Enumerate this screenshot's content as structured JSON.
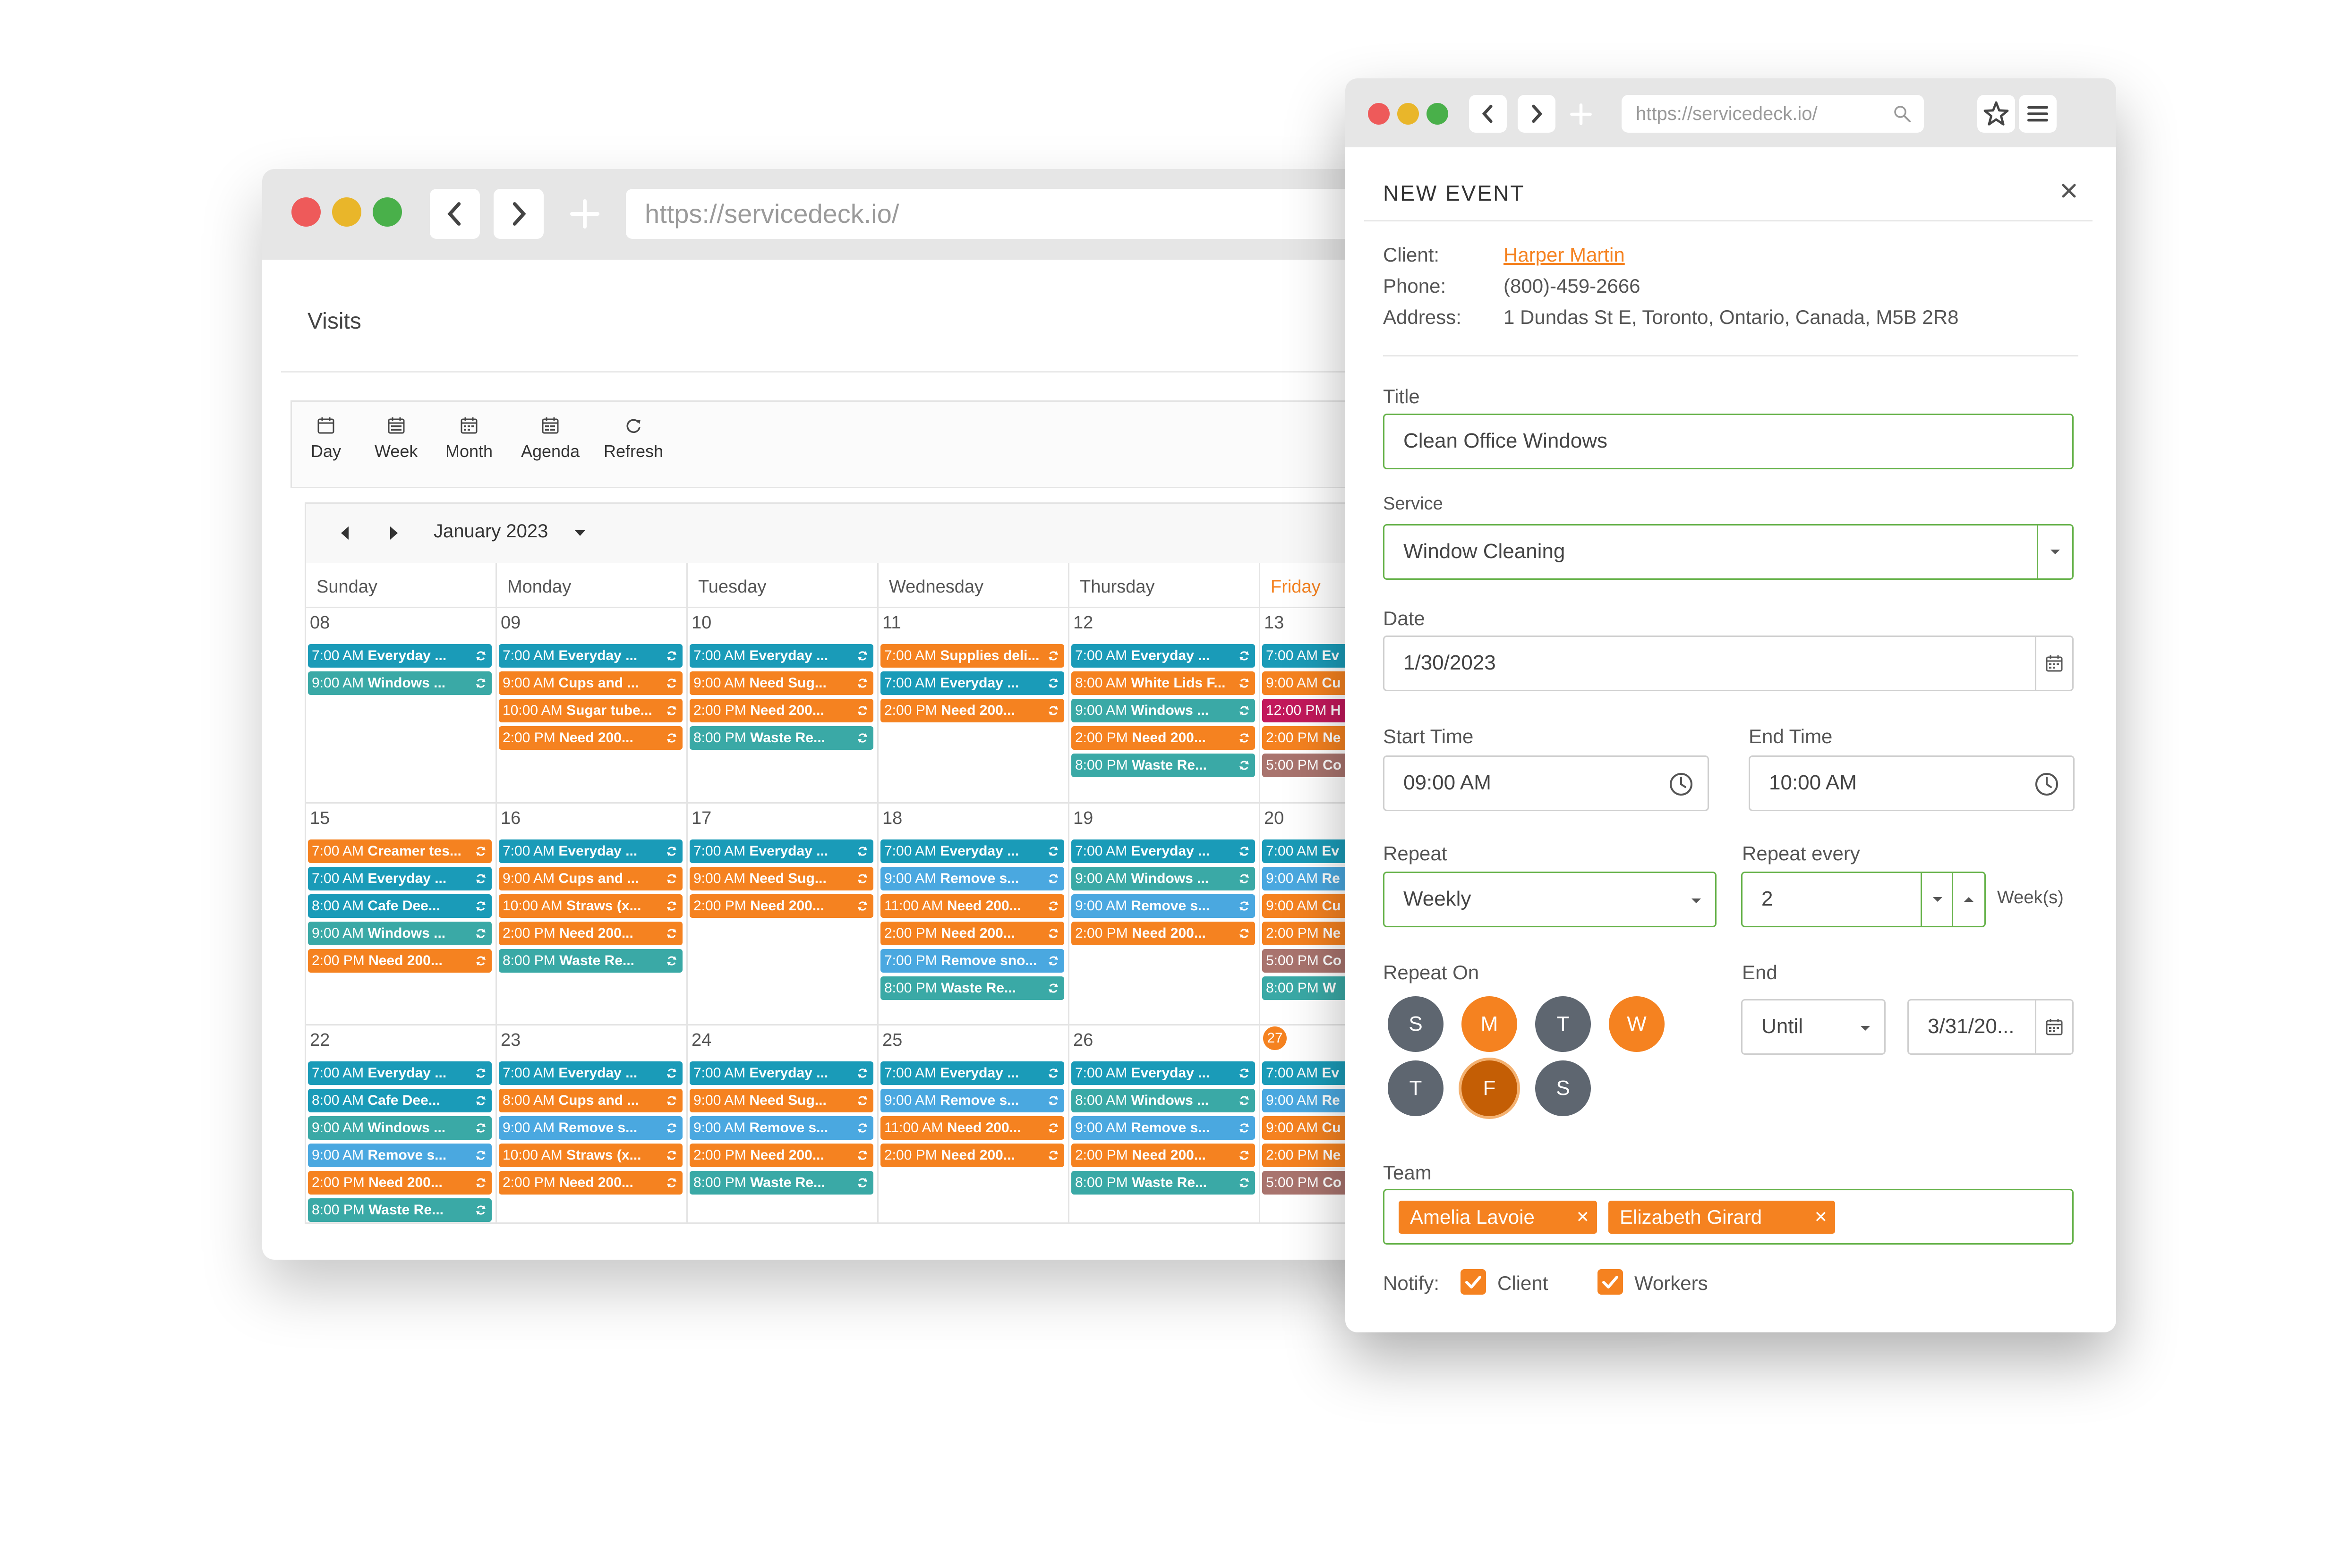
{
  "back_window": {
    "url": "https://servicedeck.io/",
    "page_title": "Visits",
    "toolbar": [
      {
        "icon": "calendar-day-icon",
        "label": "Day"
      },
      {
        "icon": "calendar-week-icon",
        "label": "Week"
      },
      {
        "icon": "calendar-month-icon",
        "label": "Month"
      },
      {
        "icon": "calendar-agenda-icon",
        "label": "Agenda"
      },
      {
        "icon": "refresh-icon",
        "label": "Refresh"
      }
    ],
    "month_label": "January 2023",
    "days": [
      "Sunday",
      "Monday",
      "Tuesday",
      "Wednesday",
      "Thursday",
      "Friday"
    ],
    "highlight_day": "Friday",
    "weeks": [
      {
        "dates": [
          "08",
          "09",
          "10",
          "11",
          "12",
          "13"
        ]
      },
      {
        "dates": [
          "15",
          "16",
          "17",
          "18",
          "19",
          "20"
        ]
      },
      {
        "dates": [
          "22",
          "23",
          "24",
          "25",
          "26",
          "27"
        ]
      }
    ],
    "today_date": "27",
    "events": [
      [
        [
          [
            "7:00 AM",
            "Everyday ...",
            "#1a9bb8"
          ],
          [
            "9:00 AM",
            "Windows ...",
            "#3aa9a6"
          ]
        ],
        [
          [
            "7:00 AM",
            "Everyday ...",
            "#1a9bb8"
          ],
          [
            "9:00 AM",
            "Cups and ...",
            "#f58220"
          ],
          [
            "10:00 AM",
            "Sugar tube...",
            "#f58220"
          ],
          [
            "2:00 PM",
            "Need 200...",
            "#f58220"
          ]
        ],
        [
          [
            "7:00 AM",
            "Everyday ...",
            "#1a9bb8"
          ],
          [
            "9:00 AM",
            "Need Sug...",
            "#f58220"
          ],
          [
            "2:00 PM",
            "Need 200...",
            "#f58220"
          ],
          [
            "8:00 PM",
            "Waste Re...",
            "#3aa9a6"
          ]
        ],
        [
          [
            "7:00 AM",
            "Supplies deli...",
            "#f58220"
          ],
          [
            "7:00 AM",
            "Everyday ...",
            "#1a9bb8"
          ],
          [
            "2:00 PM",
            "Need 200...",
            "#f58220"
          ]
        ],
        [
          [
            "7:00 AM",
            "Everyday ...",
            "#1a9bb8"
          ],
          [
            "8:00 AM",
            "White Lids F...",
            "#f58220"
          ],
          [
            "9:00 AM",
            "Windows ...",
            "#3aa9a6"
          ],
          [
            "2:00 PM",
            "Need 200...",
            "#f58220"
          ],
          [
            "8:00 PM",
            "Waste Re...",
            "#3aa9a6"
          ]
        ],
        [
          [
            "7:00 AM",
            "Ev",
            "#1a9bb8"
          ],
          [
            "9:00 AM",
            "Cu",
            "#f58220"
          ],
          [
            "12:00 PM",
            "H",
            "#c2185b"
          ],
          [
            "2:00 PM",
            "Ne",
            "#f58220"
          ],
          [
            "5:00 PM",
            "Co",
            "#a9746e"
          ]
        ]
      ],
      [
        [
          [
            "7:00 AM",
            "Creamer tes...",
            "#f58220"
          ],
          [
            "7:00 AM",
            "Everyday ...",
            "#1a9bb8"
          ],
          [
            "8:00 AM",
            "Cafe Dee...",
            "#1a9bb8"
          ],
          [
            "9:00 AM",
            "Windows ...",
            "#3aa9a6"
          ],
          [
            "2:00 PM",
            "Need 200...",
            "#f58220"
          ]
        ],
        [
          [
            "7:00 AM",
            "Everyday ...",
            "#1a9bb8"
          ],
          [
            "9:00 AM",
            "Cups and ...",
            "#f58220"
          ],
          [
            "10:00 AM",
            "Straws (x...",
            "#f58220"
          ],
          [
            "2:00 PM",
            "Need 200...",
            "#f58220"
          ],
          [
            "8:00 PM",
            "Waste Re...",
            "#3aa9a6"
          ]
        ],
        [
          [
            "7:00 AM",
            "Everyday ...",
            "#1a9bb8"
          ],
          [
            "9:00 AM",
            "Need Sug...",
            "#f58220"
          ],
          [
            "2:00 PM",
            "Need 200...",
            "#f58220"
          ]
        ],
        [
          [
            "7:00 AM",
            "Everyday ...",
            "#1a9bb8"
          ],
          [
            "9:00 AM",
            "Remove s...",
            "#4aa8e0"
          ],
          [
            "11:00 AM",
            "Need 200...",
            "#f58220"
          ],
          [
            "2:00 PM",
            "Need 200...",
            "#f58220"
          ],
          [
            "7:00 PM",
            "Remove sno...",
            "#4aa8e0"
          ],
          [
            "8:00 PM",
            "Waste Re...",
            "#3aa9a6"
          ]
        ],
        [
          [
            "7:00 AM",
            "Everyday ...",
            "#1a9bb8"
          ],
          [
            "9:00 AM",
            "Windows ...",
            "#3aa9a6"
          ],
          [
            "9:00 AM",
            "Remove s...",
            "#4aa8e0"
          ],
          [
            "2:00 PM",
            "Need 200...",
            "#f58220"
          ]
        ],
        [
          [
            "7:00 AM",
            "Ev",
            "#1a9bb8"
          ],
          [
            "9:00 AM",
            "Re",
            "#4aa8e0"
          ],
          [
            "9:00 AM",
            "Cu",
            "#f58220"
          ],
          [
            "2:00 PM",
            "Ne",
            "#f58220"
          ],
          [
            "5:00 PM",
            "Co",
            "#a9746e"
          ],
          [
            "8:00 PM",
            "W",
            "#3aa9a6"
          ]
        ]
      ],
      [
        [
          [
            "7:00 AM",
            "Everyday ...",
            "#1a9bb8"
          ],
          [
            "8:00 AM",
            "Cafe Dee...",
            "#1a9bb8"
          ],
          [
            "9:00 AM",
            "Windows ...",
            "#3aa9a6"
          ],
          [
            "9:00 AM",
            "Remove s...",
            "#4aa8e0"
          ],
          [
            "2:00 PM",
            "Need 200...",
            "#f58220"
          ],
          [
            "8:00 PM",
            "Waste Re...",
            "#3aa9a6"
          ]
        ],
        [
          [
            "7:00 AM",
            "Everyday ...",
            "#1a9bb8"
          ],
          [
            "8:00 AM",
            "Cups and ...",
            "#f58220"
          ],
          [
            "9:00 AM",
            "Remove s...",
            "#4aa8e0"
          ],
          [
            "10:00 AM",
            "Straws (x...",
            "#f58220"
          ],
          [
            "2:00 PM",
            "Need 200...",
            "#f58220"
          ]
        ],
        [
          [
            "7:00 AM",
            "Everyday ...",
            "#1a9bb8"
          ],
          [
            "9:00 AM",
            "Need Sug...",
            "#f58220"
          ],
          [
            "9:00 AM",
            "Remove s...",
            "#4aa8e0"
          ],
          [
            "2:00 PM",
            "Need 200...",
            "#f58220"
          ],
          [
            "8:00 PM",
            "Waste Re...",
            "#3aa9a6"
          ]
        ],
        [
          [
            "7:00 AM",
            "Everyday ...",
            "#1a9bb8"
          ],
          [
            "9:00 AM",
            "Remove s...",
            "#4aa8e0"
          ],
          [
            "11:00 AM",
            "Need 200...",
            "#f58220"
          ],
          [
            "2:00 PM",
            "Need 200...",
            "#f58220"
          ]
        ],
        [
          [
            "7:00 AM",
            "Everyday ...",
            "#1a9bb8"
          ],
          [
            "8:00 AM",
            "Windows ...",
            "#3aa9a6"
          ],
          [
            "9:00 AM",
            "Remove s...",
            "#4aa8e0"
          ],
          [
            "2:00 PM",
            "Need 200...",
            "#f58220"
          ],
          [
            "8:00 PM",
            "Waste Re...",
            "#3aa9a6"
          ]
        ],
        [
          [
            "7:00 AM",
            "Ev",
            "#1a9bb8"
          ],
          [
            "9:00 AM",
            "Re",
            "#4aa8e0"
          ],
          [
            "9:00 AM",
            "Cu",
            "#f58220"
          ],
          [
            "2:00 PM",
            "Ne",
            "#f58220"
          ],
          [
            "5:00 PM",
            "Co",
            "#a9746e"
          ]
        ]
      ]
    ]
  },
  "front_window": {
    "url": "https://servicedeck.io/",
    "heading": "NEW EVENT",
    "client_label": "Client:",
    "client_value": "Harper Martin",
    "phone_label": "Phone:",
    "phone_value": "(800)-459-2666",
    "address_label": "Address:",
    "address_value": "1 Dundas St E, Toronto, Ontario, Canada, M5B 2R8",
    "title_label": "Title",
    "title_value": "Clean Office Windows",
    "service_label": "Service",
    "service_value": "Window Cleaning",
    "date_label": "Date",
    "date_value": "1/30/2023",
    "start_label": "Start Time",
    "start_value": "09:00 AM",
    "end_label": "End Time",
    "end_value": "10:00 AM",
    "repeat_label": "Repeat",
    "repeat_value": "Weekly",
    "repeat_every_label": "Repeat every",
    "repeat_every_value": "2",
    "repeat_unit": "Week(s)",
    "repeat_on_label": "Repeat On",
    "weekdays": [
      {
        "letter": "S",
        "state": "off"
      },
      {
        "letter": "M",
        "state": "on"
      },
      {
        "letter": "T",
        "state": "off"
      },
      {
        "letter": "W",
        "state": "on"
      },
      {
        "letter": "T",
        "state": "off"
      },
      {
        "letter": "F",
        "state": "selected"
      },
      {
        "letter": "S",
        "state": "off"
      }
    ],
    "end_label_2": "End",
    "end_mode": "Until",
    "end_date": "3/31/20...",
    "team_label": "Team",
    "team": [
      "Amelia Lavoie",
      "Elizabeth Girard"
    ],
    "notify_label": "Notify:",
    "notify_client": "Client",
    "notify_workers": "Workers"
  },
  "colors": {
    "accent": "#f58220",
    "teal": "#1a9bb8",
    "green_border": "#66b24a",
    "dark_day": "#5e6670"
  }
}
